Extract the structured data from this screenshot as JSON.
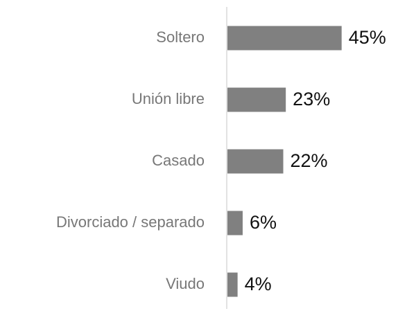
{
  "chart_data": {
    "type": "bar",
    "orientation": "horizontal",
    "categories": [
      "Soltero",
      "Unión libre",
      "Casado",
      "Divorciado / separado",
      "Viudo"
    ],
    "values": [
      45,
      23,
      22,
      6,
      4
    ],
    "value_labels": [
      "45%",
      "23%",
      "22%",
      "6%",
      "4%"
    ],
    "color": "#808080"
  }
}
